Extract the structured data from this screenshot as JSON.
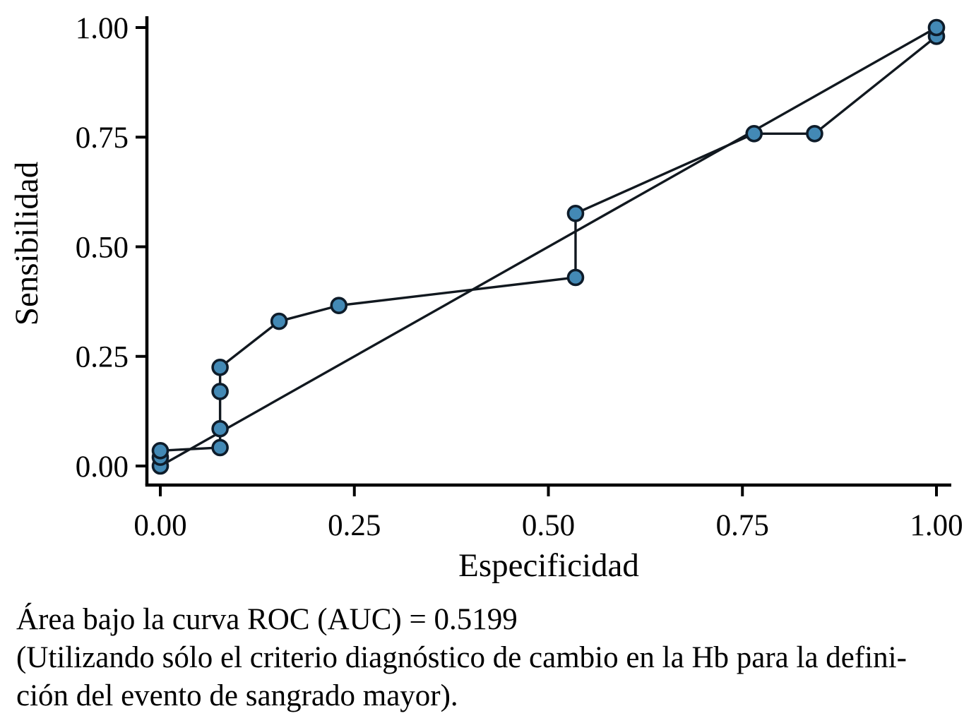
{
  "chart_data": {
    "type": "line",
    "title": "",
    "xlabel": "Especificidad",
    "ylabel": "Sensibilidad",
    "xlim": [
      0,
      1
    ],
    "ylim": [
      0,
      1
    ],
    "grid": false,
    "legend": "none",
    "ticks": {
      "values": [
        0,
        0.25,
        0.5,
        0.75,
        1
      ],
      "labels": [
        "0.00",
        "0.25",
        "0.50",
        "0.75",
        "1.00"
      ]
    },
    "series": [
      {
        "name": "roc-curve",
        "markers": true,
        "points": [
          [
            0.0,
            0.0
          ],
          [
            0.0,
            0.02
          ],
          [
            0.0,
            0.035
          ],
          [
            0.077,
            0.042
          ],
          [
            0.077,
            0.085
          ],
          [
            0.077,
            0.17
          ],
          [
            0.077,
            0.225
          ],
          [
            0.153,
            0.33
          ],
          [
            0.23,
            0.366
          ],
          [
            0.535,
            0.43
          ],
          [
            0.535,
            0.576
          ],
          [
            0.765,
            0.758
          ],
          [
            0.843,
            0.758
          ],
          [
            1.0,
            0.98
          ],
          [
            1.0,
            1.0
          ]
        ]
      },
      {
        "name": "reference-diagonal",
        "markers": false,
        "points": [
          [
            0.0,
            0.0
          ],
          [
            1.0,
            1.0
          ]
        ]
      }
    ],
    "auc": "0.5199",
    "caption": [
      "Área bajo la curva ROC (AUC) = 0.5199",
      "(Utilizando sólo el criterio diagnóstico de cambio en la Hb para la defini-",
      "ción del evento de sangrado mayor)."
    ],
    "colors": {
      "marker_fill": "#4389b5",
      "marker_stroke": "#0e1c2a",
      "line": "#11181f",
      "axis": "#000000"
    }
  }
}
